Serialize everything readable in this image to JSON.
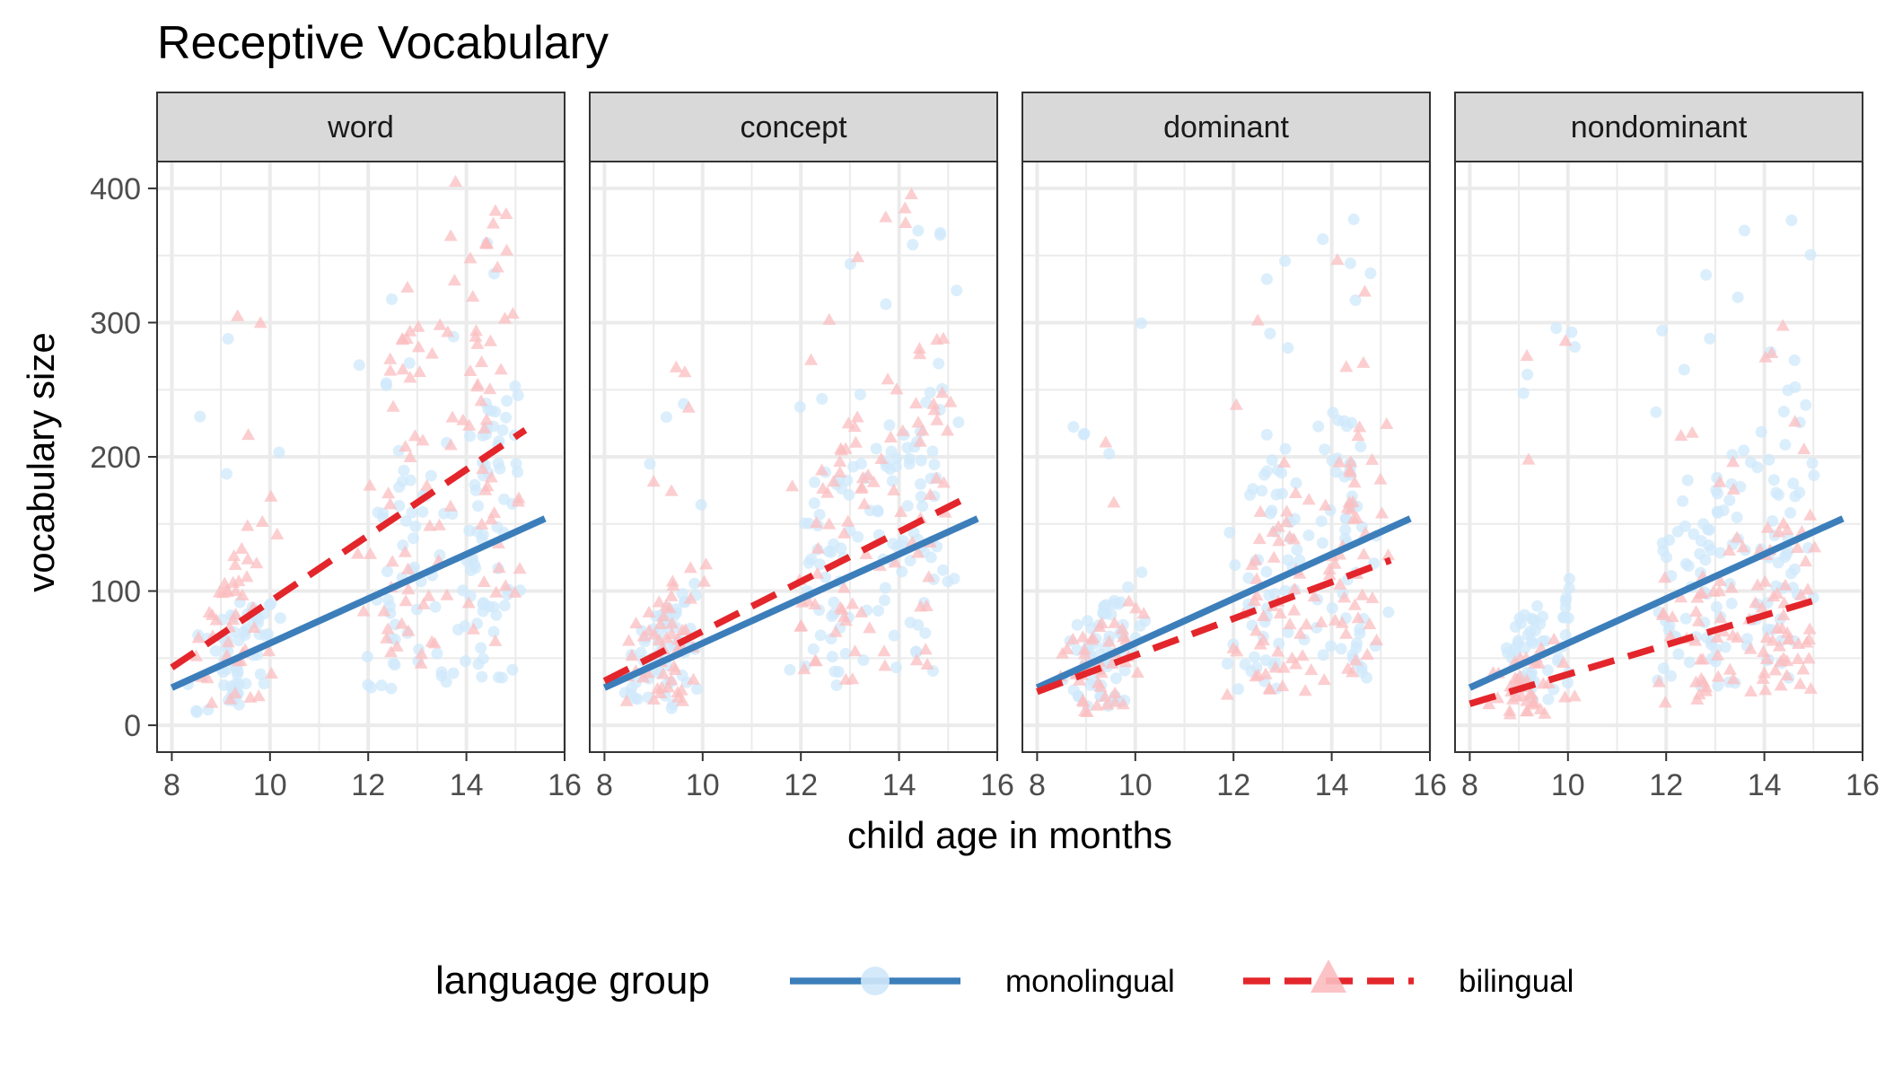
{
  "chart_data": {
    "type": "scatter",
    "title": "Receptive Vocabulary",
    "xlabel": "child age in months",
    "ylabel": "vocabulary size",
    "xlim": [
      7.7,
      16
    ],
    "ylim": [
      -20,
      420
    ],
    "x_ticks": [
      8,
      10,
      12,
      14,
      16
    ],
    "y_ticks": [
      0,
      100,
      200,
      300,
      400
    ],
    "grid": true,
    "legend": {
      "title": "language group",
      "position": "bottom",
      "entries": [
        {
          "label": "monolingual",
          "color": "#3C7EBA",
          "point_color": "#CFE8FB",
          "line": "solid",
          "marker": "circle"
        },
        {
          "label": "bilingual",
          "color": "#E3262B",
          "point_color": "#FBBDC0",
          "line": "dashed",
          "marker": "triangle"
        }
      ]
    },
    "panels": [
      {
        "label": "word",
        "series": [
          {
            "name": "monolingual",
            "fit": [
              [
                8.0,
                28
              ],
              [
                15.6,
                154
              ]
            ]
          },
          {
            "name": "bilingual",
            "fit": [
              [
                8.0,
                43
              ],
              [
                15.2,
                220
              ]
            ]
          }
        ]
      },
      {
        "label": "concept",
        "series": [
          {
            "name": "monolingual",
            "fit": [
              [
                8.0,
                28
              ],
              [
                15.6,
                154
              ]
            ]
          },
          {
            "name": "bilingual",
            "fit": [
              [
                8.0,
                33
              ],
              [
                15.4,
                170
              ]
            ]
          }
        ]
      },
      {
        "label": "dominant",
        "series": [
          {
            "name": "monolingual",
            "fit": [
              [
                8.0,
                28
              ],
              [
                15.6,
                154
              ]
            ]
          },
          {
            "name": "bilingual",
            "fit": [
              [
                8.0,
                25
              ],
              [
                15.2,
                123
              ]
            ]
          }
        ]
      },
      {
        "label": "nondominant",
        "series": [
          {
            "name": "monolingual",
            "fit": [
              [
                8.0,
                28
              ],
              [
                15.6,
                154
              ]
            ]
          },
          {
            "name": "bilingual",
            "fit": [
              [
                8.0,
                16
              ],
              [
                15.2,
                95
              ]
            ]
          }
        ]
      }
    ],
    "point_seed": 7
  }
}
